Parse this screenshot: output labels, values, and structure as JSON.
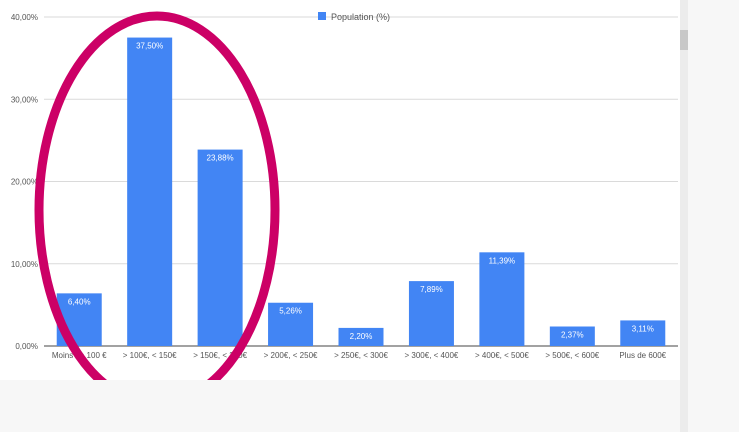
{
  "colors": {
    "bar": "#4285f4",
    "annotation": "#cc0066",
    "grid": "#dadada",
    "axis": "#444444"
  },
  "chart_data": {
    "type": "bar",
    "title": "",
    "xlabel": "",
    "ylabel": "",
    "categories": [
      "Moins de 100 €",
      "> 100€, < 150€",
      "> 150€, < 200€",
      "> 200€, < 250€",
      "> 250€, < 300€",
      "> 300€, < 400€",
      "> 400€, < 500€",
      "> 500€, < 600€",
      "Plus de 600€"
    ],
    "series": [
      {
        "name": "Population (%)",
        "values": [
          6.4,
          37.5,
          23.88,
          5.26,
          2.2,
          7.89,
          11.39,
          2.37,
          3.11
        ],
        "labels": [
          "6,40%",
          "37,50%",
          "23,88%",
          "5,26%",
          "2,20%",
          "7,89%",
          "11,39%",
          "2,37%",
          "3,11%"
        ]
      }
    ],
    "ylim": [
      0,
      40
    ],
    "yticks": [
      "0,00%",
      "10,00%",
      "20,00%",
      "30,00%",
      "40,00%"
    ],
    "grid": true,
    "legend": "top-center",
    "annotation": "ellipse around the first three bars"
  }
}
